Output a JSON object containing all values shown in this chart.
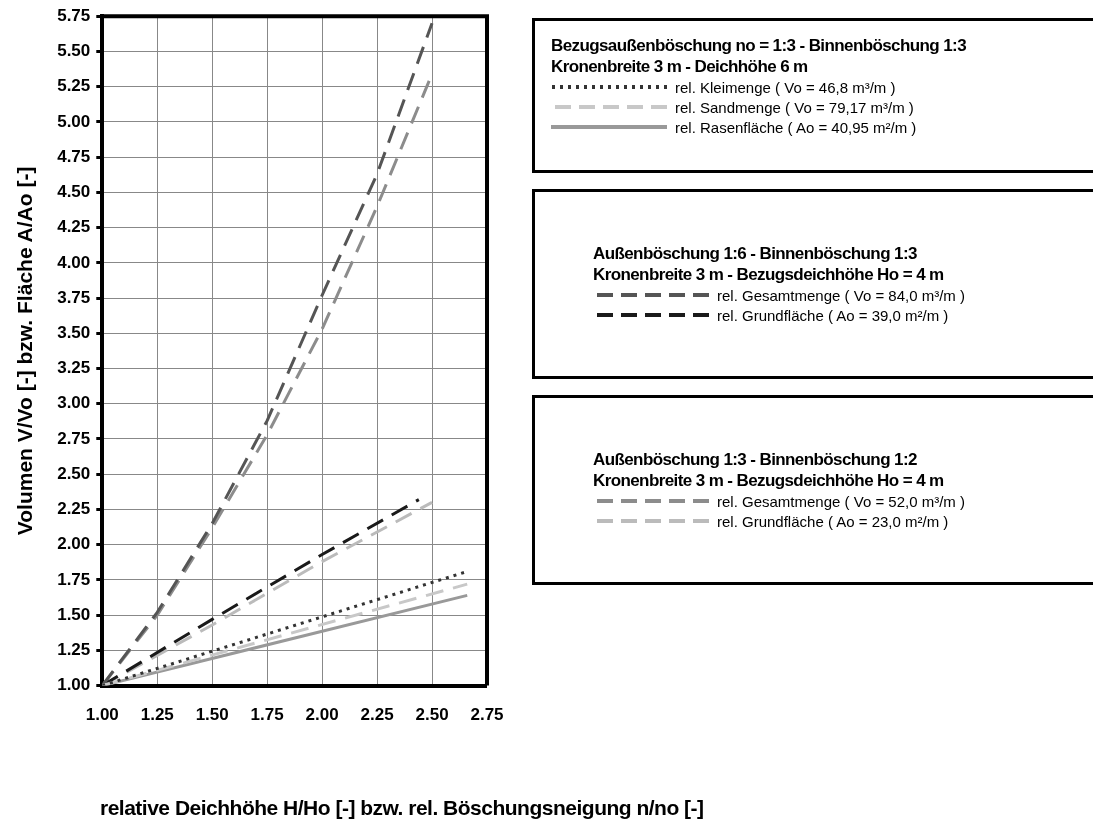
{
  "chart_data": {
    "type": "line",
    "xlabel": "relative Deichhöhe H/Ho [-] bzw. rel. Böschungsneigung n/no [-]",
    "ylabel": "Volumen V/Vo [-] bzw. Fläche A/Ao [-]",
    "xlim": [
      1,
      2.75
    ],
    "xticks": [
      {
        "value": 1,
        "label": "1.00"
      },
      {
        "value": 1.25,
        "label": "1.25"
      },
      {
        "value": 1.5,
        "label": "1.50"
      },
      {
        "value": 1.75,
        "label": "1.75"
      },
      {
        "value": 2,
        "label": "2.00"
      },
      {
        "value": 2.25,
        "label": "2.25"
      },
      {
        "value": 2.5,
        "label": "2.50"
      },
      {
        "value": 2.75,
        "label": "2.75"
      }
    ],
    "ylim": [
      1,
      5.75
    ],
    "yticks": [
      {
        "value": 1,
        "label": "1.00"
      },
      {
        "value": 1.25,
        "label": "1.25"
      },
      {
        "value": 1.5,
        "label": "1.50"
      },
      {
        "value": 1.75,
        "label": "1.75"
      },
      {
        "value": 2,
        "label": "2.00"
      },
      {
        "value": 2.25,
        "label": "2.25"
      },
      {
        "value": 2.5,
        "label": "2.50"
      },
      {
        "value": 2.75,
        "label": "2.75"
      },
      {
        "value": 3,
        "label": "3.00"
      },
      {
        "value": 3.25,
        "label": "3.25"
      },
      {
        "value": 3.5,
        "label": "3.50"
      },
      {
        "value": 3.75,
        "label": "3.75"
      },
      {
        "value": 4,
        "label": "4.00"
      },
      {
        "value": 4.25,
        "label": "4.25"
      },
      {
        "value": 4.5,
        "label": "4.50"
      },
      {
        "value": 4.75,
        "label": "4.75"
      },
      {
        "value": 5,
        "label": "5.00"
      },
      {
        "value": 5.25,
        "label": "5.25"
      },
      {
        "value": 5.5,
        "label": "5.50"
      },
      {
        "value": 5.75,
        "label": "5.75"
      }
    ],
    "grid": true,
    "legend": "right",
    "marker": "none",
    "annotations": [
      "Bezugsaußenböschung no = 1:3 - Binnenböschung 1:3\nKronenbreite 3 m - Deichhöhe 6 m",
      "Außenböschung 1:6 - Binnenböschung 1:3\nKronenbreite 3 m - Bezugsdeichhöhe Ho = 4 m",
      "Außenböschung 1:3 - Binnenböschung 1:2\nKronenbreite 3 m - Bezugsdeichhöhe Ho = 4 m"
    ],
    "series": [
      {
        "name": "rel. Kleimenge ( Vo = 46,8 m³/m )",
        "color": "#333333",
        "line_style": "dotted",
        "x": [
          1,
          2.66
        ],
        "values": [
          1,
          1.81
        ]
      },
      {
        "name": "rel. Sandmenge ( Vo = 79,17 m³/m )",
        "color": "#c8c8c8",
        "line_style": "dashed",
        "x": [
          1,
          2.66
        ],
        "values": [
          1,
          1.72
        ]
      },
      {
        "name": "rel. Rasenfläche ( Ao = 40,95 m²/m )",
        "color": "#999999",
        "line_style": "solid",
        "x": [
          1,
          2.66
        ],
        "values": [
          1,
          1.64
        ]
      },
      {
        "name": "rel. Gesamtmenge ( Vo = 84,0 m³/m )",
        "color": "#555555",
        "line_style": "dashed",
        "x": [
          1,
          1.25,
          1.5,
          1.75,
          2,
          2.25,
          2.5
        ],
        "values": [
          1,
          1.52,
          2.15,
          2.88,
          3.77,
          4.63,
          5.7
        ]
      },
      {
        "name": "rel. Grundfläche ( Ao = 39,0 m²/m )",
        "color": "#1a1a1a",
        "line_style": "dashed",
        "x": [
          1,
          1.5,
          2,
          2.44
        ],
        "values": [
          1,
          1.47,
          1.93,
          2.32
        ]
      },
      {
        "name": "rel. Gesamtmenge ( Vo = 52,0 m³/m )",
        "color": "#8c8c8c",
        "line_style": "dashed",
        "x": [
          1,
          1.25,
          1.5,
          1.75,
          2,
          2.25,
          2.5
        ],
        "values": [
          1,
          1.5,
          2.12,
          2.78,
          3.53,
          4.4,
          5.34
        ]
      },
      {
        "name": "rel. Grundfläche ( Ao = 23,0 m²/m )",
        "color": "#bbbbbb",
        "line_style": "dashed",
        "x": [
          1,
          1.5,
          2,
          2.5
        ],
        "values": [
          1,
          1.43,
          1.88,
          2.3
        ]
      }
    ]
  }
}
